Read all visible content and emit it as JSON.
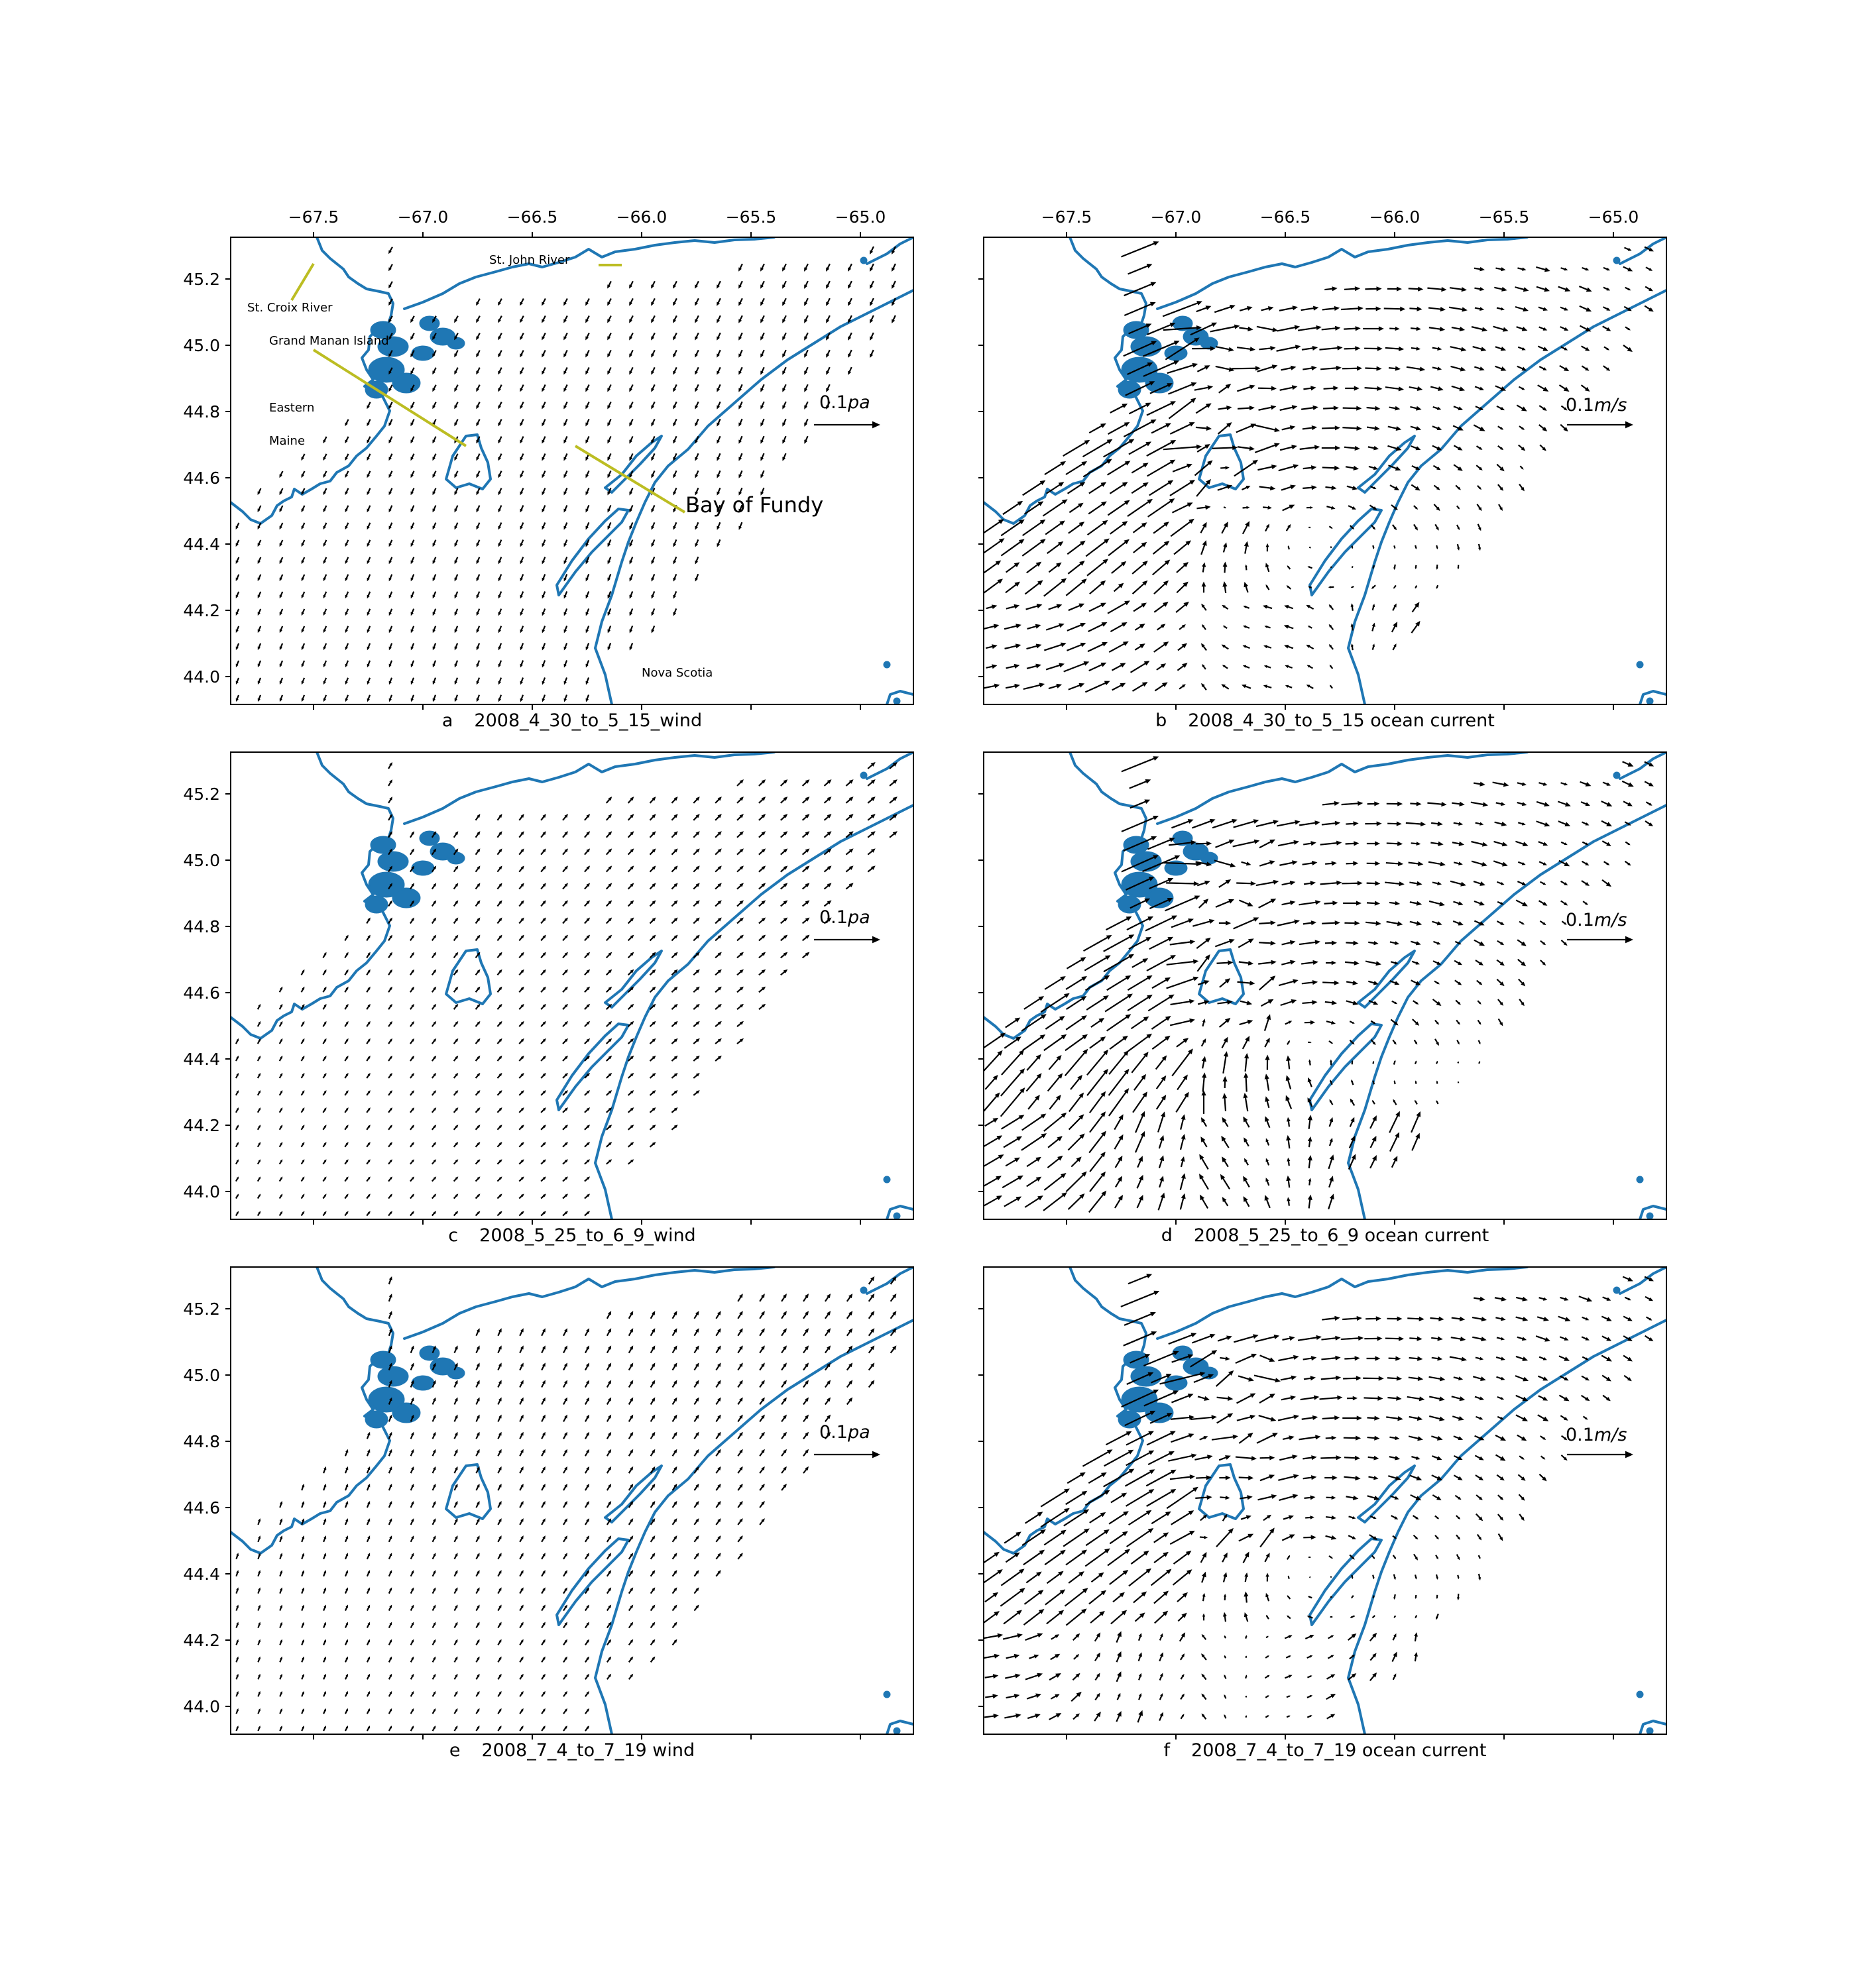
{
  "figure": {
    "x_ticks": [
      "−67.5",
      "−67.0",
      "−66.5",
      "−66.0",
      "−65.5",
      "−65.0"
    ],
    "y_ticks": [
      "45.2",
      "45.0",
      "44.8",
      "44.6",
      "44.4",
      "44.2",
      "44.0"
    ],
    "coast_color": "#1f77b4",
    "leader_color": "#bcbd22"
  },
  "place_labels": {
    "st_john_river": "St. John River",
    "st_croix_river": "St. Croix River",
    "grand_manan_island": "Grand Manan Island",
    "eastern": "Eastern",
    "maine": "Maine",
    "bay_of_fundy": "Bay of Fundy",
    "nova_scotia": "Nova Scotia"
  },
  "panels": [
    {
      "letter": "a",
      "caption": "2008_4_30_to_5_15_wind",
      "kind": "wind",
      "scale_value": "0.1",
      "scale_unit": "pa",
      "show_x_ticks": true,
      "show_y_labels": true
    },
    {
      "letter": "b",
      "caption": "2008_4_30_to_5_15 ocean current",
      "kind": "current",
      "scale_value": "0.1",
      "scale_unit": "m/s",
      "show_x_ticks": true,
      "show_y_labels": false
    },
    {
      "letter": "c",
      "caption": "2008_5_25_to_6_9_wind",
      "kind": "wind",
      "scale_value": "0.1",
      "scale_unit": "pa",
      "show_x_ticks": false,
      "show_y_labels": true
    },
    {
      "letter": "d",
      "caption": "2008_5_25_to_6_9 ocean current",
      "kind": "current",
      "scale_value": "0.1",
      "scale_unit": "m/s",
      "show_x_ticks": false,
      "show_y_labels": false
    },
    {
      "letter": "e",
      "caption": "2008_7_4_to_7_19 wind",
      "kind": "wind",
      "scale_value": "0.1",
      "scale_unit": "pa",
      "show_x_ticks": false,
      "show_y_labels": true
    },
    {
      "letter": "f",
      "caption": "2008_7_4_to_7_19 ocean current",
      "kind": "current",
      "scale_value": "0.1",
      "scale_unit": "m/s",
      "show_x_ticks": false,
      "show_y_labels": false
    }
  ]
}
